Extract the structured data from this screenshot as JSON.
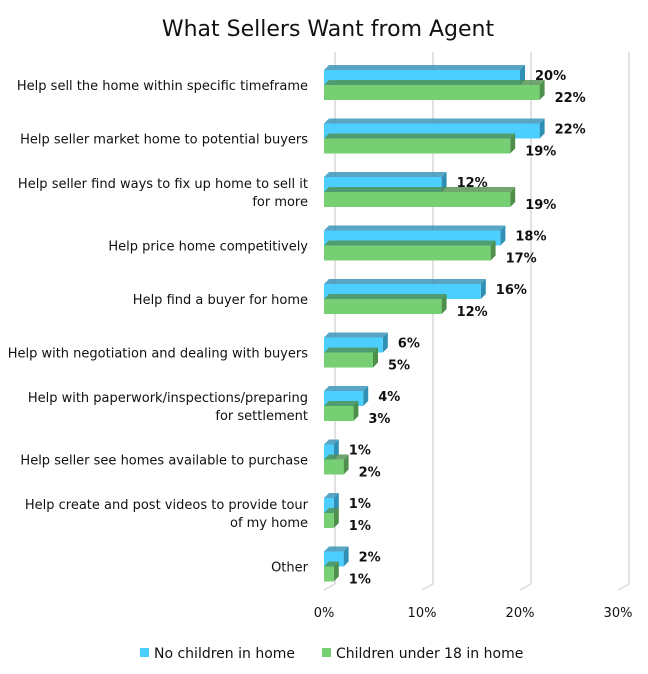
{
  "chart_data": {
    "type": "bar",
    "orientation": "horizontal",
    "title": "What Sellers Want from Agent",
    "categories": [
      [
        "Help sell the home within specific timeframe"
      ],
      [
        "Help seller market home to potential buyers"
      ],
      [
        "Help seller find ways to fix up home to sell it",
        "for more"
      ],
      [
        "Help price home competitively"
      ],
      [
        "Help find a buyer for home"
      ],
      [
        "Help with negotiation and dealing with buyers"
      ],
      [
        "Help with paperwork/inspections/preparing",
        "for settlement"
      ],
      [
        "Help seller see homes available to purchase"
      ],
      [
        "Help create and post videos to provide tour",
        "of my home"
      ],
      [
        "Other"
      ]
    ],
    "series": [
      {
        "name": "No children in home",
        "color": "#4ccfff",
        "side": "#2f8fb5",
        "values": [
          20,
          22,
          12,
          18,
          16,
          6,
          4,
          1,
          1,
          2
        ]
      },
      {
        "name": "Children under 18 in home",
        "color": "#76cf72",
        "side": "#4f8f4c",
        "values": [
          22,
          19,
          19,
          17,
          12,
          5,
          3,
          2,
          1,
          1
        ]
      }
    ],
    "xlim": [
      0,
      30
    ],
    "xticks": [
      "0%",
      "10%",
      "20%",
      "30%"
    ],
    "xtick_values": [
      0,
      10,
      20,
      30
    ],
    "grid": true,
    "legend": "bottom",
    "value_suffix": "%"
  }
}
